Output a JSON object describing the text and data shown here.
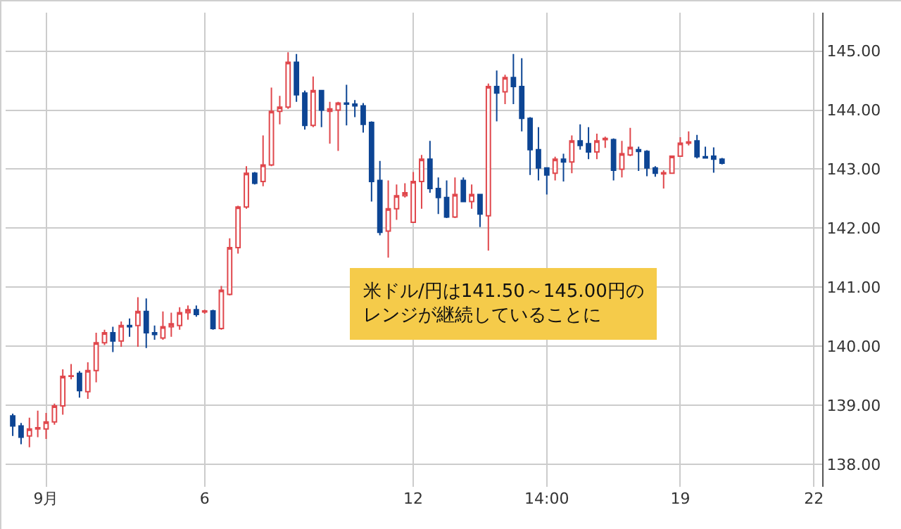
{
  "chart_data": {
    "type": "candlestick",
    "categories": [
      null,
      null,
      null,
      null,
      "9月",
      null,
      null,
      null,
      null,
      null,
      null,
      null,
      null,
      null,
      null,
      null,
      null,
      null,
      null,
      null,
      null,
      null,
      null,
      "6",
      null,
      null,
      null,
      null,
      null,
      null,
      null,
      null,
      null,
      null,
      null,
      null,
      null,
      null,
      null,
      null,
      null,
      null,
      null,
      null,
      null,
      null,
      null,
      null,
      "12",
      null,
      null,
      null,
      null,
      null,
      null,
      null,
      null,
      null,
      null,
      null,
      null,
      null,
      null,
      null,
      "14:00",
      null,
      null,
      null,
      null,
      null,
      null,
      null,
      null,
      null,
      null,
      null,
      null,
      null,
      null,
      null,
      "19",
      null,
      null,
      null,
      null,
      null,
      null,
      null,
      null,
      null,
      null,
      null,
      null,
      null,
      null,
      null,
      "22"
    ],
    "ohlc": [
      [
        138.82,
        138.86,
        138.48,
        138.65
      ],
      [
        138.65,
        138.7,
        138.34,
        138.46
      ],
      [
        138.48,
        138.79,
        138.29,
        138.6
      ],
      [
        138.6,
        138.91,
        138.46,
        138.62
      ],
      [
        138.6,
        138.87,
        138.43,
        138.72
      ],
      [
        138.72,
        139.03,
        138.67,
        138.99
      ],
      [
        138.99,
        139.61,
        138.84,
        139.49
      ],
      [
        139.49,
        139.7,
        139.44,
        139.5
      ],
      [
        139.54,
        139.58,
        139.13,
        139.25
      ],
      [
        139.23,
        139.73,
        139.11,
        139.59
      ],
      [
        139.59,
        140.23,
        139.39,
        140.06
      ],
      [
        140.06,
        140.28,
        140.02,
        140.23
      ],
      [
        140.23,
        140.33,
        139.9,
        140.09
      ],
      [
        140.09,
        140.42,
        139.99,
        140.35
      ],
      [
        140.35,
        140.47,
        140.16,
        140.33
      ],
      [
        140.35,
        140.83,
        139.99,
        140.59
      ],
      [
        140.59,
        140.81,
        139.97,
        140.23
      ],
      [
        140.23,
        140.35,
        140.11,
        140.2
      ],
      [
        140.14,
        140.59,
        140.11,
        140.33
      ],
      [
        140.33,
        140.57,
        140.16,
        140.38
      ],
      [
        140.35,
        140.66,
        140.28,
        140.57
      ],
      [
        140.57,
        140.69,
        140.45,
        140.62
      ],
      [
        140.62,
        140.69,
        140.5,
        140.54
      ],
      [
        140.58,
        140.62,
        140.55,
        140.6
      ],
      [
        140.6,
        140.62,
        140.28,
        140.3
      ],
      [
        140.3,
        141.02,
        140.28,
        140.95
      ],
      [
        140.88,
        141.83,
        140.86,
        141.67
      ],
      [
        141.67,
        142.38,
        141.57,
        142.36
      ],
      [
        142.36,
        143.05,
        142.33,
        142.93
      ],
      [
        142.93,
        142.95,
        142.74,
        142.76
      ],
      [
        142.79,
        143.57,
        142.71,
        143.07
      ],
      [
        143.07,
        144.38,
        143.05,
        143.98
      ],
      [
        143.98,
        144.24,
        143.76,
        144.05
      ],
      [
        144.05,
        144.98,
        144.02,
        144.81
      ],
      [
        144.81,
        144.95,
        144.14,
        144.26
      ],
      [
        144.29,
        144.33,
        143.67,
        143.74
      ],
      [
        143.74,
        144.57,
        143.71,
        144.33
      ],
      [
        144.33,
        144.33,
        143.71,
        144.0
      ],
      [
        143.98,
        144.14,
        143.43,
        144.02
      ],
      [
        144.0,
        144.14,
        143.31,
        144.12
      ],
      [
        144.12,
        144.43,
        143.74,
        144.1
      ],
      [
        144.1,
        144.17,
        143.88,
        144.07
      ],
      [
        144.07,
        144.12,
        143.62,
        143.76
      ],
      [
        143.79,
        143.81,
        142.45,
        142.79
      ],
      [
        142.81,
        143.14,
        141.88,
        141.93
      ],
      [
        141.95,
        142.81,
        141.5,
        142.33
      ],
      [
        142.33,
        142.74,
        142.14,
        142.55
      ],
      [
        142.55,
        142.76,
        142.52,
        142.6
      ],
      [
        142.1,
        142.95,
        142.1,
        142.79
      ],
      [
        142.79,
        143.24,
        142.33,
        143.17
      ],
      [
        143.17,
        143.48,
        142.6,
        142.67
      ],
      [
        142.67,
        142.86,
        142.24,
        142.52
      ],
      [
        142.52,
        142.81,
        142.17,
        142.19
      ],
      [
        142.19,
        142.86,
        142.17,
        142.57
      ],
      [
        142.81,
        142.86,
        142.45,
        142.45
      ],
      [
        142.45,
        142.74,
        142.33,
        142.57
      ],
      [
        142.57,
        142.57,
        142.02,
        142.24
      ],
      [
        142.21,
        144.45,
        141.62,
        144.4
      ],
      [
        144.4,
        144.67,
        143.81,
        144.29
      ],
      [
        144.31,
        144.6,
        144.1,
        144.55
      ],
      [
        144.55,
        144.95,
        144.1,
        144.4
      ],
      [
        144.4,
        144.88,
        143.64,
        143.86
      ],
      [
        143.86,
        143.88,
        142.9,
        143.33
      ],
      [
        143.33,
        143.71,
        142.81,
        143.02
      ],
      [
        143.02,
        143.02,
        142.57,
        142.9
      ],
      [
        142.93,
        143.21,
        142.81,
        143.17
      ],
      [
        143.17,
        143.26,
        142.79,
        143.12
      ],
      [
        143.12,
        143.57,
        142.93,
        143.48
      ],
      [
        143.48,
        143.76,
        143.33,
        143.4
      ],
      [
        143.43,
        143.71,
        143.17,
        143.29
      ],
      [
        143.29,
        143.6,
        143.17,
        143.48
      ],
      [
        143.5,
        143.55,
        143.36,
        143.52
      ],
      [
        143.5,
        143.52,
        142.81,
        142.98
      ],
      [
        143.0,
        143.48,
        142.86,
        143.26
      ],
      [
        143.24,
        143.7,
        143.22,
        143.37
      ],
      [
        143.33,
        143.38,
        142.97,
        143.3
      ],
      [
        143.3,
        143.32,
        142.88,
        143.02
      ],
      [
        143.02,
        143.05,
        142.87,
        142.93
      ],
      [
        142.92,
        142.98,
        142.67,
        142.94
      ],
      [
        142.93,
        143.22,
        142.93,
        143.22
      ],
      [
        143.22,
        143.54,
        143.22,
        143.44
      ],
      [
        143.44,
        143.64,
        143.4,
        143.46
      ],
      [
        143.48,
        143.58,
        143.18,
        143.21
      ],
      [
        143.21,
        143.38,
        143.18,
        143.19
      ],
      [
        143.22,
        143.37,
        142.94,
        143.17
      ],
      [
        143.17,
        143.19,
        143.08,
        143.1
      ],
      null,
      null,
      null,
      null,
      null,
      null,
      null,
      null,
      null,
      null,
      null
    ],
    "colors": [
      "#0d4594",
      "#0d4594",
      "#e0474c",
      "#e0474c",
      "#e0474c",
      "#e0474c",
      "#e0474c",
      "#e0474c",
      "#0d4594",
      "#e0474c",
      "#e0474c",
      "#e0474c",
      "#0d4594",
      "#e0474c",
      "#0d4594",
      "#e0474c",
      "#0d4594",
      "#0d4594",
      "#e0474c",
      "#e0474c",
      "#e0474c",
      "#e0474c",
      "#0d4594",
      "#e0474c",
      "#0d4594",
      "#e0474c",
      "#e0474c",
      "#e0474c",
      "#e0474c",
      "#0d4594",
      "#e0474c",
      "#e0474c",
      "#e0474c",
      "#e0474c",
      "#0d4594",
      "#0d4594",
      "#e0474c",
      "#0d4594",
      "#e0474c",
      "#e0474c",
      "#0d4594",
      "#0d4594",
      "#0d4594",
      "#0d4594",
      "#0d4594",
      "#e0474c",
      "#e0474c",
      "#e0474c",
      "#e0474c",
      "#e0474c",
      "#0d4594",
      "#0d4594",
      "#0d4594",
      "#e0474c",
      "#0d4594",
      "#e0474c",
      "#0d4594",
      "#e0474c",
      "#0d4594",
      "#e0474c",
      "#0d4594",
      "#0d4594",
      "#0d4594",
      "#0d4594",
      "#0d4594",
      "#e0474c",
      "#0d4594",
      "#e0474c",
      "#0d4594",
      "#0d4594",
      "#e0474c",
      "#e0474c",
      "#0d4594",
      "#e0474c",
      "#e0474c",
      "#0d4594",
      "#0d4594",
      "#0d4594",
      "#e0474c",
      "#e0474c",
      "#e0474c",
      "#e0474c",
      "#0d4594",
      "#0d4594",
      "#0d4594",
      "#0d4594",
      null,
      null,
      null,
      null,
      null,
      null,
      null,
      null,
      null,
      null,
      null
    ],
    "ylim": [
      137.62,
      145.65
    ],
    "yticks": [
      {
        "value": 138,
        "label": "138.00"
      },
      {
        "value": 139,
        "label": "139.00"
      },
      {
        "value": 140,
        "label": "140.00"
      },
      {
        "value": 141,
        "label": "141.00"
      },
      {
        "value": 142,
        "label": "142.00"
      },
      {
        "value": 143,
        "label": "143.00"
      },
      {
        "value": 144,
        "label": "144.00"
      },
      {
        "value": 145,
        "label": "145.00"
      }
    ],
    "grid": true,
    "annotations": [
      "米ドル/円は141.50～145.00円のレンジが継続していることに"
    ]
  }
}
